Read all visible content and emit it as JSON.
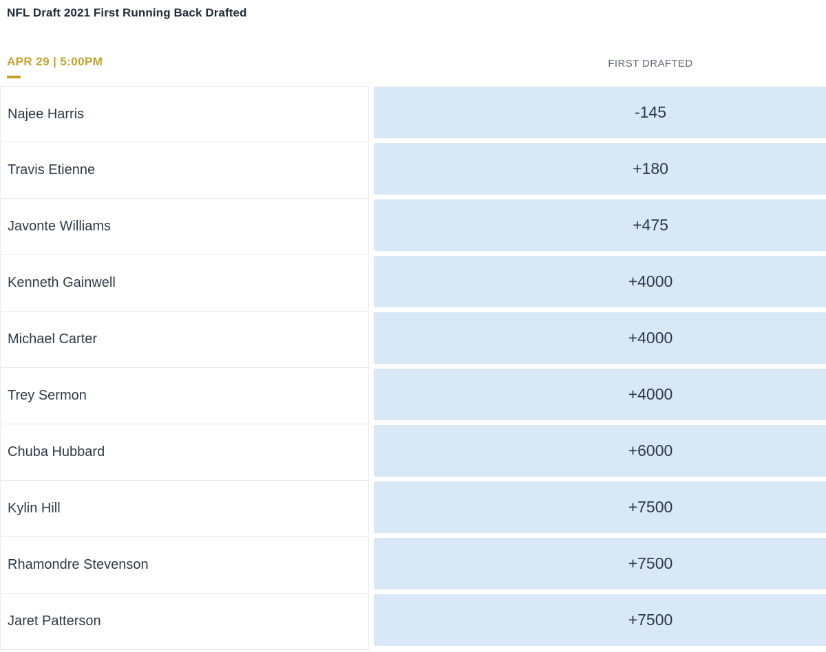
{
  "page": {
    "title": "NFL Draft 2021 First Running Back Drafted",
    "event_datetime": "APR 29 | 5:00PM",
    "column_header": "FIRST DRAFTED"
  },
  "odds_table": {
    "rows": [
      {
        "player": "Najee Harris",
        "odds": "-145"
      },
      {
        "player": "Travis Etienne",
        "odds": "+180"
      },
      {
        "player": "Javonte Williams",
        "odds": "+475"
      },
      {
        "player": "Kenneth Gainwell",
        "odds": "+4000"
      },
      {
        "player": "Michael Carter",
        "odds": "+4000"
      },
      {
        "player": "Trey Sermon",
        "odds": "+4000"
      },
      {
        "player": "Chuba Hubbard",
        "odds": "+6000"
      },
      {
        "player": "Kylin Hill",
        "odds": "+7500"
      },
      {
        "player": "Rhamondre Stevenson",
        "odds": "+7500"
      },
      {
        "player": "Jaret Patterson",
        "odds": "+7500"
      }
    ]
  },
  "colors": {
    "accent_gold": "#c2a22a",
    "odds_cell_bg": "#d9e8f6",
    "title_text": "#1f2c38",
    "player_text": "#2c3a47",
    "odds_text": "#2a3744",
    "column_header_text": "#5c6773",
    "divider": "#e9eaeb"
  }
}
